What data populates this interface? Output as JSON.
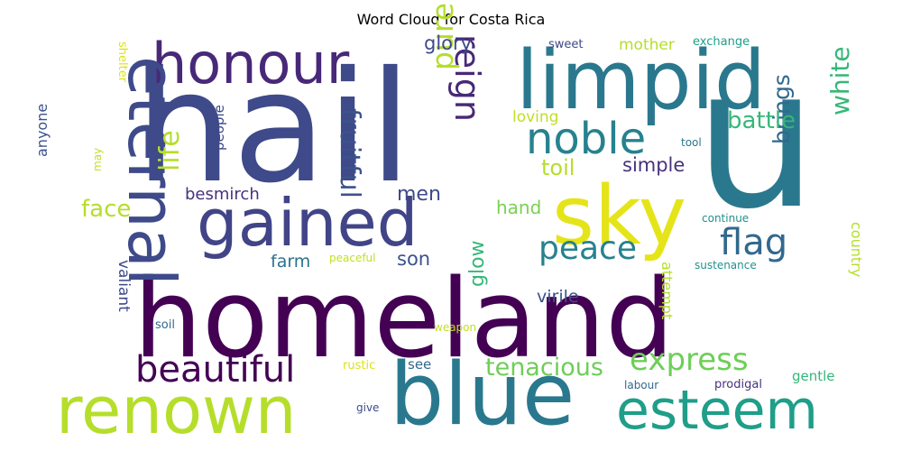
{
  "title": "Word Cloud for Costa Rica",
  "palette": {
    "dark_purple": "#440154",
    "indigo": "#3b528b",
    "teal": "#21918c",
    "green": "#5ec962",
    "lime": "#b5de2b",
    "yellow": "#fde725"
  },
  "words": [
    {
      "text": "hail",
      "color": "#3e4a89"
    },
    {
      "text": "homeland",
      "color": "#440154"
    },
    {
      "text": "u",
      "color": "#2a788e"
    },
    {
      "text": "limpid",
      "color": "#2a788e"
    },
    {
      "text": "sky",
      "color": "#e5e419"
    },
    {
      "text": "blue",
      "color": "#2a788e"
    },
    {
      "text": "renown",
      "color": "#b5de2b"
    },
    {
      "text": "gained",
      "color": "#414487"
    },
    {
      "text": "honour",
      "color": "#482878"
    },
    {
      "text": "eternal",
      "color": "#3e4a89"
    },
    {
      "text": "esteem",
      "color": "#1f9e89"
    },
    {
      "text": "noble",
      "color": "#26828e"
    },
    {
      "text": "beautiful",
      "color": "#440154"
    },
    {
      "text": "express",
      "color": "#6ece58"
    },
    {
      "text": "peace",
      "color": "#26828e"
    },
    {
      "text": "flag",
      "color": "#31688e"
    },
    {
      "text": "reign",
      "color": "#482878"
    },
    {
      "text": "pure",
      "color": "#b5de2b"
    },
    {
      "text": "life",
      "color": "#b5de2b"
    },
    {
      "text": "fruitful",
      "color": "#3b528b"
    },
    {
      "text": "white",
      "color": "#35b779"
    },
    {
      "text": "brings",
      "color": "#31688e"
    },
    {
      "text": "battle",
      "color": "#35b779"
    },
    {
      "text": "tenacious",
      "color": "#6ece58"
    },
    {
      "text": "face",
      "color": "#b5de2b"
    },
    {
      "text": "glory",
      "color": "#3e4a89"
    },
    {
      "text": "toil",
      "color": "#b5de2b"
    },
    {
      "text": "simple",
      "color": "#46327e"
    },
    {
      "text": "men",
      "color": "#3e4a89"
    },
    {
      "text": "son",
      "color": "#3b528b"
    },
    {
      "text": "glow",
      "color": "#35b779"
    },
    {
      "text": "mother",
      "color": "#b5de2b"
    },
    {
      "text": "hand",
      "color": "#7ad151"
    },
    {
      "text": "farm",
      "color": "#2c728e"
    },
    {
      "text": "besmirch",
      "color": "#46327e"
    },
    {
      "text": "loving",
      "color": "#c2df23"
    },
    {
      "text": "virile",
      "color": "#3b528b"
    },
    {
      "text": "country",
      "color": "#b5de2b"
    },
    {
      "text": "attempt",
      "color": "#b5de2b"
    },
    {
      "text": "valiant",
      "color": "#3e4a89"
    },
    {
      "text": "anyone",
      "color": "#3b528b"
    },
    {
      "text": "people",
      "color": "#3e4a89"
    },
    {
      "text": "see",
      "color": "#31688e"
    },
    {
      "text": "gentle",
      "color": "#35b779"
    },
    {
      "text": "sweet",
      "color": "#3e4a89"
    },
    {
      "text": "exchange",
      "color": "#1f9e89"
    },
    {
      "text": "shelter",
      "color": "#dde318"
    },
    {
      "text": "may",
      "color": "#c2df23"
    },
    {
      "text": "soil",
      "color": "#31688e"
    },
    {
      "text": "peaceful",
      "color": "#c2df23"
    },
    {
      "text": "weapon",
      "color": "#c2df23"
    },
    {
      "text": "rustic",
      "color": "#dde318"
    },
    {
      "text": "give",
      "color": "#3e4a89"
    },
    {
      "text": "labour",
      "color": "#31688e"
    },
    {
      "text": "prodigal",
      "color": "#46327e"
    },
    {
      "text": "continue",
      "color": "#21918c"
    },
    {
      "text": "sustenance",
      "color": "#21918c"
    },
    {
      "text": "tool",
      "color": "#2a788e"
    }
  ]
}
